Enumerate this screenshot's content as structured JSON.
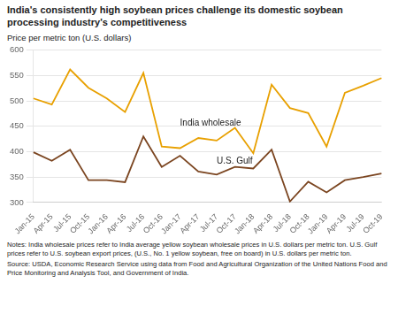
{
  "chart_data": {
    "type": "line",
    "title": "India's consistently high soybean prices challenge its domestic soybean processing industry's competitiveness",
    "ylabel": "Price per metric ton (U.S. dollars)",
    "notes": [
      "Notes: India wholesale prices refer to India average yellow soybean wholesale prices in U.S. dollars per metric ton. U.S. Gulf prices refer to U.S. soybean export prices, (U.S., No. 1 yellow soybean, free on board) in U.S. dollars per metric ton.",
      "Source: USDA, Economic Research Service using data from Food and Agricultural Organization of the United Nations Food and Price Monitoring and Analysis Tool, and Government of India."
    ],
    "categories": [
      "Jan-15",
      "Apr-15",
      "Jul-15",
      "Oct-15",
      "Jan-16",
      "Apr-16",
      "Jul-16",
      "Oct-16",
      "Jan-17",
      "Apr-17",
      "Jul-17",
      "Oct-17",
      "Jan-18",
      "Apr-18",
      "Jul-18",
      "Oct-18",
      "Jan-19",
      "Apr-19",
      "Jul-19",
      "Oct-19"
    ],
    "series": [
      {
        "name": "India wholesale",
        "color": "#E8A000",
        "values": [
          505,
          493,
          562,
          526,
          505,
          478,
          555,
          410,
          407,
          427,
          422,
          447,
          397,
          532,
          486,
          476,
          410,
          516,
          530,
          545
        ]
      },
      {
        "name": "U.S. Gulf",
        "color": "#7B4520",
        "values": [
          399,
          382,
          404,
          344,
          344,
          340,
          430,
          370,
          392,
          361,
          355,
          370,
          367,
          404,
          302,
          341,
          320,
          344,
          350,
          357
        ]
      }
    ],
    "ylim": [
      300,
      600
    ],
    "yticks": [
      300,
      350,
      400,
      450,
      500,
      550,
      600
    ],
    "grid": true
  }
}
